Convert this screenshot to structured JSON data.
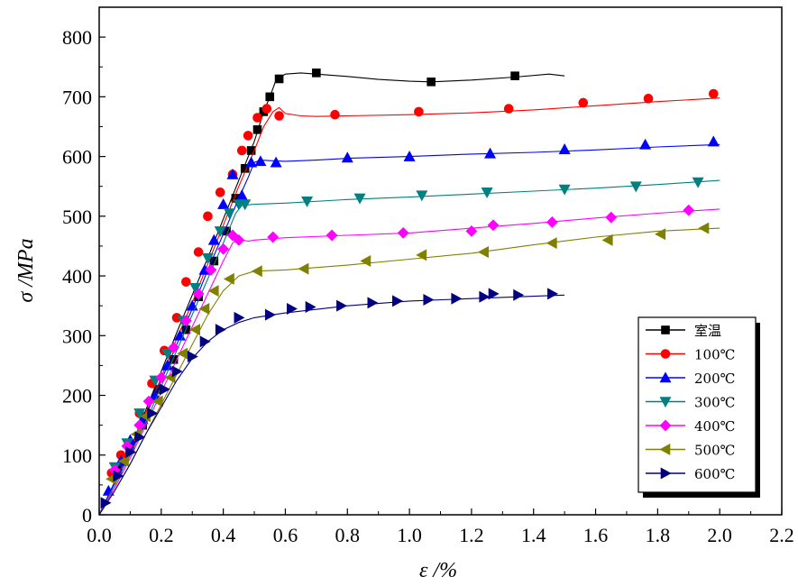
{
  "chart_data": {
    "type": "line",
    "xlabel": "ε /%",
    "ylabel": "σ /MPa",
    "xlim": [
      0.0,
      2.2
    ],
    "ylim": [
      0,
      850
    ],
    "xticks": [
      0.0,
      0.2,
      0.4,
      0.6,
      0.8,
      1.0,
      1.2,
      1.4,
      1.6,
      1.8,
      2.0,
      2.2
    ],
    "xtick_labels": [
      "0.0",
      "0.2",
      "0.4",
      "0.6",
      "0.8",
      "1.0",
      "1.2",
      "1.4",
      "1.6",
      "1.8",
      "2.0",
      "2.2"
    ],
    "yticks": [
      0,
      100,
      200,
      300,
      400,
      500,
      600,
      700,
      800
    ],
    "ytick_labels": [
      "0",
      "100",
      "200",
      "300",
      "400",
      "500",
      "600",
      "700",
      "800"
    ],
    "grid": false,
    "legend_position": "bottom-right",
    "series": [
      {
        "name": "室温",
        "color": "#000000",
        "marker": "square",
        "x": [
          0.0,
          0.05,
          0.1,
          0.15,
          0.2,
          0.25,
          0.3,
          0.35,
          0.4,
          0.45,
          0.5,
          0.53,
          0.55,
          0.57,
          0.6,
          0.65,
          0.7,
          0.8,
          0.9,
          1.0,
          1.07,
          1.2,
          1.34,
          1.45,
          1.5
        ],
        "y": [
          0,
          55,
          110,
          175,
          240,
          305,
          368,
          430,
          495,
          560,
          625,
          675,
          700,
          728,
          738,
          740,
          738,
          734,
          729,
          726,
          725,
          728,
          733,
          738,
          735
        ],
        "marker_x": [
          0.06,
          0.1,
          0.14,
          0.19,
          0.24,
          0.28,
          0.32,
          0.37,
          0.41,
          0.44,
          0.47,
          0.49,
          0.51,
          0.53,
          0.55,
          0.58,
          0.7,
          1.07,
          1.34
        ],
        "marker_y": [
          75,
          110,
          150,
          210,
          260,
          310,
          365,
          425,
          475,
          530,
          580,
          610,
          645,
          675,
          700,
          730,
          740,
          725,
          735
        ]
      },
      {
        "name": "100℃",
        "color": "#ff0000",
        "marker": "circle",
        "x": [
          0.0,
          0.05,
          0.1,
          0.15,
          0.2,
          0.25,
          0.3,
          0.35,
          0.4,
          0.45,
          0.5,
          0.53,
          0.56,
          0.58,
          0.6,
          0.65,
          0.7,
          0.8,
          1.0,
          1.2,
          1.4,
          1.6,
          1.8,
          2.0
        ],
        "y": [
          0,
          55,
          110,
          170,
          230,
          295,
          355,
          420,
          485,
          550,
          610,
          650,
          675,
          682,
          672,
          668,
          667,
          668,
          670,
          673,
          678,
          685,
          692,
          698
        ],
        "marker_x": [
          0.04,
          0.07,
          0.1,
          0.13,
          0.17,
          0.21,
          0.25,
          0.28,
          0.32,
          0.35,
          0.39,
          0.43,
          0.46,
          0.48,
          0.51,
          0.54,
          0.58,
          0.76,
          1.03,
          1.32,
          1.56,
          1.77,
          1.98
        ],
        "marker_y": [
          70,
          100,
          120,
          170,
          220,
          275,
          330,
          390,
          440,
          500,
          540,
          570,
          610,
          635,
          665,
          680,
          668,
          670,
          675,
          680,
          690,
          697,
          705
        ]
      },
      {
        "name": "200℃",
        "color": "#0000ff",
        "marker": "triangle-up",
        "x": [
          0.0,
          0.05,
          0.1,
          0.15,
          0.2,
          0.25,
          0.3,
          0.35,
          0.4,
          0.45,
          0.48,
          0.5,
          0.52,
          0.55,
          0.6,
          0.7,
          0.8,
          1.0,
          1.2,
          1.4,
          1.6,
          1.8,
          2.0
        ],
        "y": [
          0,
          55,
          105,
          165,
          225,
          285,
          345,
          410,
          470,
          530,
          565,
          590,
          594,
          593,
          592,
          594,
          597,
          600,
          604,
          607,
          611,
          616,
          620
        ],
        "marker_x": [
          0.03,
          0.07,
          0.1,
          0.14,
          0.18,
          0.22,
          0.26,
          0.3,
          0.34,
          0.37,
          0.4,
          0.43,
          0.46,
          0.49,
          0.52,
          0.57,
          0.8,
          1.0,
          1.26,
          1.5,
          1.76,
          1.98
        ],
        "marker_y": [
          40,
          90,
          125,
          160,
          200,
          250,
          300,
          350,
          410,
          460,
          520,
          570,
          535,
          590,
          592,
          590,
          598,
          600,
          605,
          612,
          620,
          625
        ]
      },
      {
        "name": "300℃",
        "color": "#008080",
        "marker": "triangle-down",
        "x": [
          0.0,
          0.05,
          0.1,
          0.15,
          0.2,
          0.25,
          0.3,
          0.35,
          0.4,
          0.44,
          0.46,
          0.5,
          0.6,
          0.8,
          1.0,
          1.2,
          1.4,
          1.6,
          1.8,
          2.0
        ],
        "y": [
          0,
          50,
          100,
          155,
          215,
          275,
          335,
          395,
          455,
          505,
          518,
          520,
          522,
          528,
          532,
          537,
          542,
          547,
          553,
          560
        ],
        "marker_x": [
          0.05,
          0.09,
          0.13,
          0.18,
          0.22,
          0.27,
          0.31,
          0.35,
          0.39,
          0.42,
          0.45,
          0.47,
          0.67,
          0.84,
          1.04,
          1.25,
          1.5,
          1.73,
          1.93
        ],
        "marker_y": [
          80,
          120,
          170,
          225,
          270,
          325,
          380,
          430,
          475,
          505,
          520,
          520,
          525,
          530,
          535,
          540,
          545,
          550,
          557
        ]
      },
      {
        "name": "400℃",
        "color": "#ff00ff",
        "marker": "diamond",
        "x": [
          0.0,
          0.05,
          0.1,
          0.15,
          0.2,
          0.25,
          0.3,
          0.35,
          0.4,
          0.43,
          0.45,
          0.48,
          0.5,
          0.6,
          0.8,
          1.0,
          1.2,
          1.4,
          1.6,
          1.8,
          2.0
        ],
        "y": [
          0,
          45,
          95,
          150,
          205,
          260,
          315,
          370,
          425,
          455,
          462,
          458,
          460,
          464,
          468,
          472,
          480,
          488,
          497,
          505,
          512
        ],
        "marker_x": [
          0.05,
          0.09,
          0.13,
          0.16,
          0.2,
          0.24,
          0.28,
          0.32,
          0.36,
          0.4,
          0.43,
          0.45,
          0.56,
          0.75,
          0.98,
          1.2,
          1.27,
          1.46,
          1.65,
          1.9
        ],
        "marker_y": [
          75,
          115,
          150,
          190,
          230,
          280,
          325,
          370,
          410,
          445,
          468,
          460,
          465,
          468,
          472,
          475,
          485,
          490,
          498,
          510
        ]
      },
      {
        "name": "500℃",
        "color": "#808000",
        "marker": "triangle-left",
        "x": [
          0.0,
          0.05,
          0.1,
          0.15,
          0.2,
          0.25,
          0.3,
          0.35,
          0.4,
          0.45,
          0.5,
          0.6,
          0.8,
          1.0,
          1.2,
          1.4,
          1.6,
          1.8,
          2.0
        ],
        "y": [
          0,
          40,
          85,
          135,
          185,
          235,
          285,
          335,
          375,
          400,
          408,
          410,
          418,
          428,
          438,
          452,
          465,
          475,
          480
        ],
        "marker_x": [
          0.04,
          0.08,
          0.12,
          0.15,
          0.19,
          0.23,
          0.27,
          0.31,
          0.34,
          0.37,
          0.42,
          0.51,
          0.66,
          0.86,
          1.04,
          1.24,
          1.46,
          1.64,
          1.81,
          1.95
        ],
        "marker_y": [
          60,
          90,
          135,
          165,
          190,
          230,
          270,
          310,
          345,
          375,
          395,
          408,
          412,
          425,
          435,
          440,
          455,
          460,
          470,
          480
        ]
      },
      {
        "name": "600℃",
        "color": "#000080",
        "marker": "triangle-right",
        "x": [
          0.0,
          0.05,
          0.1,
          0.15,
          0.2,
          0.25,
          0.3,
          0.35,
          0.4,
          0.45,
          0.5,
          0.6,
          0.8,
          1.0,
          1.2,
          1.4,
          1.5
        ],
        "y": [
          0,
          40,
          85,
          135,
          180,
          225,
          262,
          290,
          310,
          322,
          330,
          338,
          350,
          358,
          362,
          366,
          368
        ],
        "marker_x": [
          0.02,
          0.06,
          0.1,
          0.13,
          0.17,
          0.21,
          0.25,
          0.3,
          0.34,
          0.39,
          0.45,
          0.55,
          0.62,
          0.68,
          0.78,
          0.88,
          0.96,
          1.06,
          1.15,
          1.24,
          1.27,
          1.35,
          1.46
        ],
        "marker_y": [
          20,
          65,
          105,
          130,
          170,
          210,
          240,
          265,
          290,
          310,
          330,
          335,
          345,
          348,
          350,
          355,
          358,
          360,
          362,
          365,
          370,
          368,
          370
        ]
      }
    ]
  }
}
